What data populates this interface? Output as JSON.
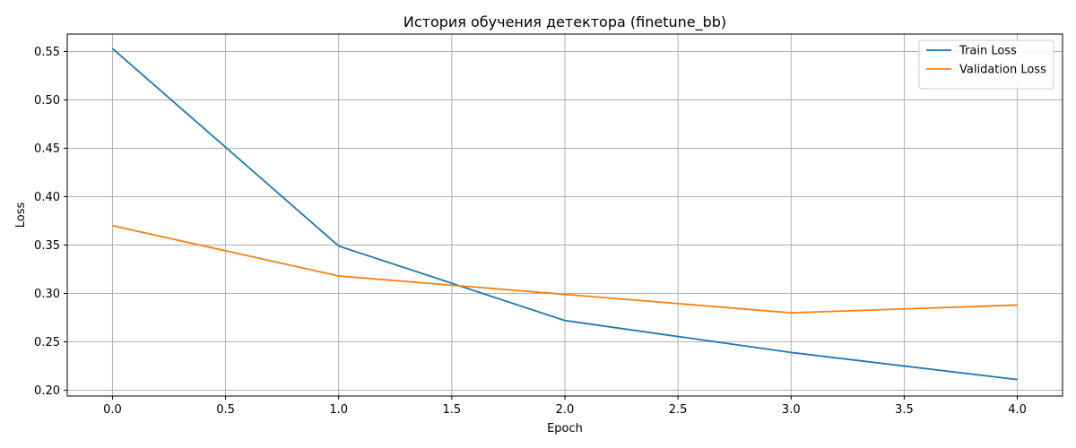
{
  "chart_data": {
    "type": "line",
    "title": "История обучения детектора (finetune_bb)",
    "xlabel": "Epoch",
    "ylabel": "Loss",
    "xlim": [
      -0.2,
      4.2
    ],
    "ylim": [
      0.194,
      0.568
    ],
    "xticks": [
      0.0,
      0.5,
      1.0,
      1.5,
      2.0,
      2.5,
      3.0,
      3.5,
      4.0
    ],
    "xtick_labels": [
      "0.0",
      "0.5",
      "1.0",
      "1.5",
      "2.0",
      "2.5",
      "3.0",
      "3.5",
      "4.0"
    ],
    "yticks": [
      0.2,
      0.25,
      0.3,
      0.35,
      0.4,
      0.45,
      0.5,
      0.55
    ],
    "ytick_labels": [
      "0.20",
      "0.25",
      "0.30",
      "0.35",
      "0.40",
      "0.45",
      "0.50",
      "0.55"
    ],
    "grid": true,
    "legend_position": "top-right",
    "x": [
      0,
      1,
      2,
      3,
      4
    ],
    "series": [
      {
        "name": "Train Loss",
        "color": "#1f77b4",
        "values": [
          0.553,
          0.349,
          0.272,
          0.239,
          0.211
        ]
      },
      {
        "name": "Validation Loss",
        "color": "#ff7f0e",
        "values": [
          0.37,
          0.318,
          0.299,
          0.28,
          0.288
        ]
      }
    ]
  }
}
